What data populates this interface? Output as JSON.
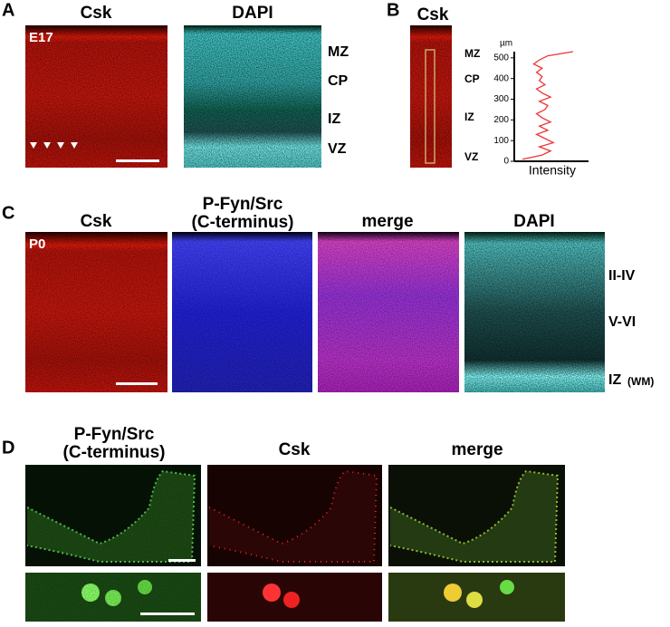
{
  "panel_a": {
    "label": "A",
    "headers": [
      "Csk",
      "DAPI"
    ],
    "stage": "E17",
    "layers": [
      "MZ",
      "CP",
      "IZ",
      "VZ"
    ]
  },
  "panel_b": {
    "label": "B",
    "header": "Csk",
    "layers": [
      "MZ",
      "CP",
      "IZ",
      "VZ"
    ],
    "profile": {
      "y_unit": "µm",
      "x_label": "Intensity",
      "ylim": [
        0,
        530
      ],
      "yticks": [
        0,
        100,
        200,
        300,
        400,
        500
      ],
      "xlim": [
        0,
        100
      ],
      "depth": [
        10,
        30,
        50,
        70,
        90,
        110,
        130,
        150,
        170,
        190,
        210,
        230,
        250,
        270,
        290,
        310,
        330,
        350,
        370,
        390,
        410,
        430,
        450,
        470,
        490,
        510,
        530
      ],
      "intensity": [
        5,
        40,
        55,
        35,
        60,
        45,
        30,
        50,
        35,
        55,
        40,
        30,
        45,
        50,
        35,
        55,
        40,
        30,
        45,
        35,
        40,
        30,
        40,
        25,
        35,
        50,
        95
      ]
    }
  },
  "panel_c": {
    "label": "C",
    "headers": [
      "Csk",
      "P-Fyn/Src",
      "(C-terminus)",
      "merge",
      "DAPI"
    ],
    "stage": "P0",
    "layers": [
      "II-IV",
      "V-VI",
      "IZ",
      "(WM)"
    ]
  },
  "panel_d": {
    "label": "D",
    "headers": [
      "P-Fyn/Src",
      "(C-terminus)",
      "Csk",
      "merge"
    ]
  }
}
